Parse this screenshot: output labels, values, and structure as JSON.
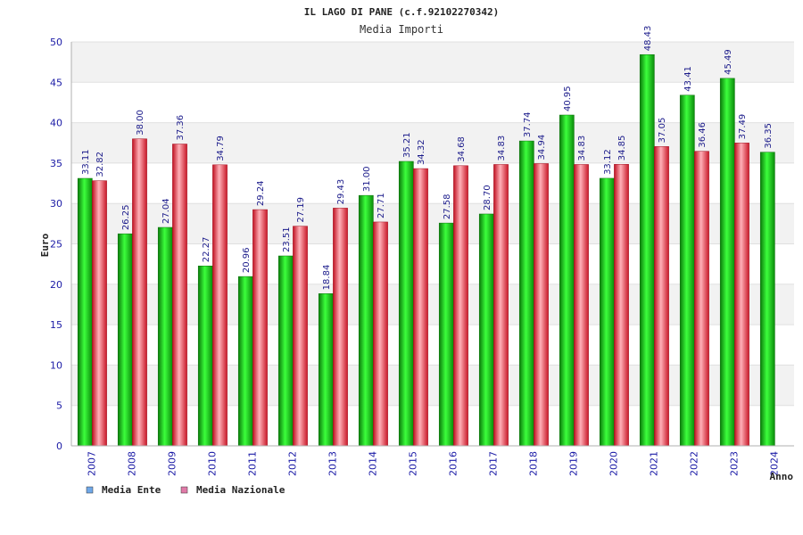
{
  "chart_data": {
    "type": "bar",
    "title": "IL LAGO DI PANE (c.f.92102270342)",
    "subtitle": "Media Importi",
    "xlabel": "Anno",
    "ylabel": "Euro",
    "ylim": [
      0,
      50
    ],
    "yticks": [
      0,
      5,
      10,
      15,
      20,
      25,
      30,
      35,
      40,
      45,
      50
    ],
    "categories": [
      "2007",
      "2008",
      "2009",
      "2010",
      "2011",
      "2012",
      "2013",
      "2014",
      "2015",
      "2016",
      "2017",
      "2018",
      "2019",
      "2020",
      "2021",
      "2022",
      "2023",
      "2024"
    ],
    "series": [
      {
        "name": "Media Ente",
        "color": "#00b400",
        "legend_color": "#6fa8e8",
        "values": [
          33.11,
          26.25,
          27.04,
          22.27,
          20.96,
          23.51,
          18.84,
          31.0,
          35.21,
          27.58,
          28.7,
          37.74,
          40.95,
          33.12,
          48.43,
          43.41,
          45.49,
          36.35
        ],
        "labels": [
          "33.11",
          "26.25",
          "27.04",
          "22.27",
          "20.96",
          "23.51",
          "18.84",
          "31.00",
          "35.21",
          "27.58",
          "28.70",
          "37.74",
          "40.95",
          "33.12",
          "48.43",
          "43.41",
          "45.49",
          "36.35"
        ]
      },
      {
        "name": "Media Nazionale",
        "color": "#e02030",
        "legend_color": "#e07aa8",
        "values": [
          32.82,
          38.0,
          37.36,
          34.79,
          29.24,
          27.19,
          29.43,
          27.71,
          34.32,
          34.68,
          34.83,
          34.94,
          34.83,
          34.85,
          37.05,
          36.46,
          37.49,
          null
        ],
        "labels": [
          "32.82",
          "38.00",
          "37.36",
          "34.79",
          "29.24",
          "27.19",
          "29.43",
          "27.71",
          "34.32",
          "34.68",
          "34.83",
          "34.94",
          "34.83",
          "34.85",
          "37.05",
          "36.46",
          "37.49",
          ""
        ]
      }
    ],
    "grid": true,
    "legend_position": "bottom-left"
  }
}
